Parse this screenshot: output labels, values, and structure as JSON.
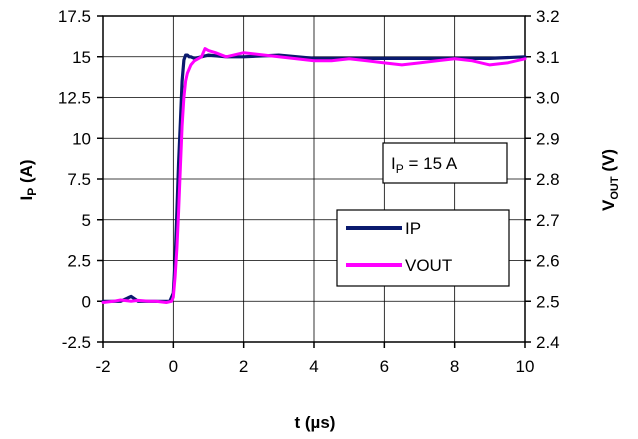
{
  "chart_data": {
    "type": "line",
    "xlabel": "t (µs)",
    "ylabel_left": {
      "main": "I",
      "sub": "P",
      "tail": " (A)"
    },
    "ylabel_right": {
      "main": "V",
      "sub": "OUT",
      "tail": " (V)"
    },
    "xlim": [
      -2,
      10
    ],
    "ylim_left": [
      -2.5,
      17.5
    ],
    "ylim_right": [
      2.4,
      3.2
    ],
    "x_ticks": [
      "-2",
      "0",
      "2",
      "4",
      "6",
      "8",
      "10"
    ],
    "y_left_ticks": [
      "-2.5",
      "0",
      "2.5",
      "5",
      "7.5",
      "10",
      "12.5",
      "15",
      "17.5"
    ],
    "y_right_ticks": [
      "2.4",
      "2.5",
      "2.6",
      "2.7",
      "2.8",
      "2.9",
      "3.0",
      "3.1",
      "3.2"
    ],
    "grid": true,
    "annotation": {
      "main": "I",
      "sub": "P",
      "tail": " = 15  A"
    },
    "legend_position": "center-right",
    "series": [
      {
        "name": "IP",
        "axis": "left",
        "color": "#0a1a6e",
        "x": [
          -2,
          -1.5,
          -1.2,
          -1,
          -0.5,
          -0.1,
          0,
          0.05,
          0.1,
          0.15,
          0.2,
          0.25,
          0.3,
          0.35,
          0.4,
          0.45,
          0.5,
          0.6,
          0.8,
          1,
          1.5,
          2,
          3,
          4,
          5,
          6,
          7,
          8,
          9,
          10
        ],
        "values": [
          0,
          0,
          0.3,
          0,
          0,
          0,
          0.5,
          2.5,
          5.5,
          8.5,
          11,
          13.5,
          14.8,
          15.1,
          15.1,
          15,
          15,
          14.9,
          15,
          15.1,
          15,
          15,
          15.1,
          14.9,
          14.9,
          14.9,
          14.9,
          14.9,
          14.9,
          15
        ]
      },
      {
        "name": "VOUT",
        "axis": "right",
        "color": "#ff00ff",
        "x": [
          -2,
          -1.7,
          -1.5,
          -1.2,
          -1,
          -0.7,
          -0.5,
          -0.2,
          -0.05,
          0,
          0.05,
          0.1,
          0.15,
          0.2,
          0.25,
          0.3,
          0.35,
          0.4,
          0.5,
          0.6,
          0.8,
          0.9,
          1,
          1.2,
          1.5,
          2,
          2.5,
          3,
          3.5,
          4,
          4.5,
          5,
          5.5,
          6,
          6.5,
          7,
          7.5,
          8,
          8.5,
          9,
          9.5,
          10
        ],
        "values": [
          2.497,
          2.5,
          2.503,
          2.5,
          2.502,
          2.5,
          2.5,
          2.497,
          2.5,
          2.51,
          2.56,
          2.63,
          2.72,
          2.83,
          2.93,
          3.0,
          3.04,
          3.06,
          3.08,
          3.09,
          3.1,
          3.12,
          3.115,
          3.11,
          3.1,
          3.11,
          3.105,
          3.1,
          3.095,
          3.09,
          3.09,
          3.095,
          3.09,
          3.085,
          3.08,
          3.085,
          3.09,
          3.095,
          3.09,
          3.08,
          3.085,
          3.095
        ]
      }
    ]
  }
}
